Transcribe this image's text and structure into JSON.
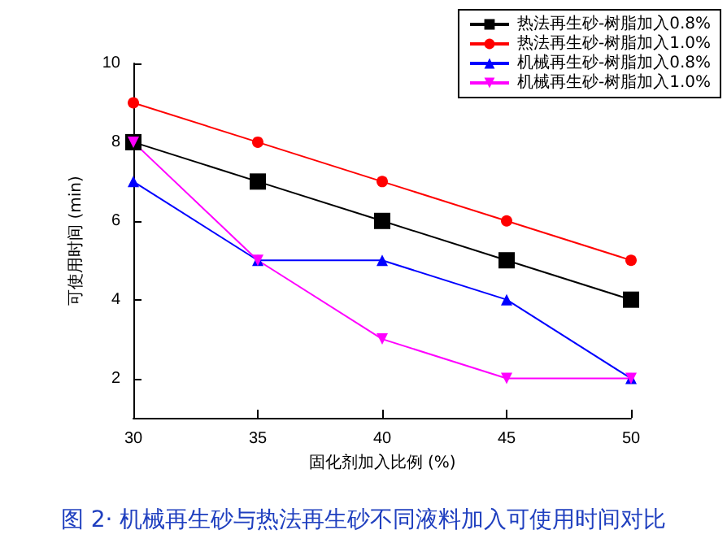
{
  "chart_data": {
    "type": "line",
    "title": "图 2· 机械再生砂与热法再生砂不同液料加入可使用时间对比",
    "xlabel": "固化剂加入比例 (%)",
    "ylabel": "可使用时间 (min)",
    "x": [
      30,
      35,
      40,
      45,
      50
    ],
    "xlim": [
      30,
      50
    ],
    "xticks": [
      30,
      35,
      40,
      45,
      50
    ],
    "ylim": [
      1,
      10
    ],
    "yticks": [
      2,
      4,
      6,
      8,
      10
    ],
    "grid": false,
    "legend": "top right",
    "line_style": "solid",
    "series": [
      {
        "name": "热法再生砂-树脂加入0.8%",
        "color": "#000000",
        "marker": "square",
        "values": [
          8,
          7,
          6,
          5,
          4
        ]
      },
      {
        "name": "热法再生砂-树脂加入1.0%",
        "color": "#ff0000",
        "marker": "circle",
        "values": [
          9,
          8,
          7,
          6,
          5
        ]
      },
      {
        "name": "机械再生砂-树脂加入0.8%",
        "color": "#0000ff",
        "marker": "triangle",
        "values": [
          7,
          5,
          5,
          4,
          2
        ]
      },
      {
        "name": "机械再生砂-树脂加入1.0%",
        "color": "#ff00ff",
        "marker": "triangle-down",
        "values": [
          8,
          5,
          3,
          2,
          2
        ]
      }
    ]
  }
}
